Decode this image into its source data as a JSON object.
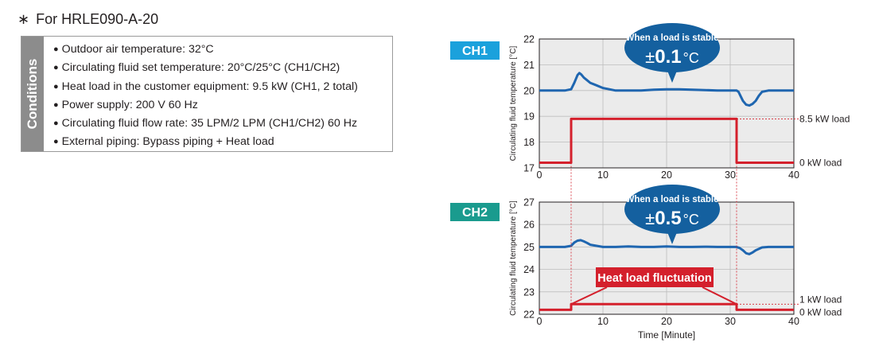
{
  "model": {
    "prefix": "∗",
    "label": "For HRLE090-A-20"
  },
  "conditions": {
    "tab_label": "Conditions",
    "items": [
      "Outdoor air temperature: 32°C",
      "Circulating fluid set temperature: 20°C/25°C (CH1/CH2)",
      "Heat load in the customer equipment: 9.5 kW (CH1, 2 total)",
      "Power supply: 200 V 60 Hz",
      "Circulating fluid flow rate: 35 LPM/2 LPM (CH1/CH2) 60 Hz",
      "External piping: Bypass piping + Heat load"
    ]
  },
  "colors": {
    "ch1_badge": "#1ba1dc",
    "ch2_badge": "#1a9b8e",
    "temperature_line": "#1f66b0",
    "load_line": "#d4202c",
    "callout": "#14609f",
    "plot_bg": "#ebebeb",
    "grid": "#bdbdbd"
  },
  "chart_data": [
    {
      "type": "line",
      "channel": "CH1",
      "ylabel": "Circulating fluid temperature [°C]",
      "xlim": [
        0,
        40
      ],
      "ylim": [
        17,
        22
      ],
      "xticks": [
        0,
        10,
        20,
        30,
        40
      ],
      "yticks": [
        17,
        18,
        19,
        20,
        21,
        22
      ],
      "grid": true,
      "series": [
        {
          "role": "temperature",
          "x": [
            0,
            2,
            4,
            5,
            5.5,
            6,
            6.3,
            6.6,
            7,
            7.5,
            8,
            9,
            10,
            11,
            12,
            14,
            16,
            18,
            20,
            22,
            24,
            26,
            28,
            30,
            31,
            31.3,
            31.6,
            32,
            32.5,
            33,
            33.5,
            34,
            34.5,
            35,
            36,
            38,
            40
          ],
          "y": [
            20.0,
            20.0,
            20.0,
            20.05,
            20.3,
            20.6,
            20.68,
            20.62,
            20.5,
            20.4,
            20.3,
            20.2,
            20.1,
            20.05,
            20.0,
            20.0,
            20.0,
            20.03,
            20.05,
            20.05,
            20.03,
            20.02,
            20.0,
            20.0,
            20.0,
            19.95,
            19.8,
            19.6,
            19.45,
            19.42,
            19.48,
            19.6,
            19.8,
            19.95,
            20.0,
            20.0,
            20.0
          ]
        },
        {
          "role": "heat-load",
          "x": [
            0,
            5,
            5,
            31,
            31,
            40
          ],
          "y": [
            17.2,
            17.2,
            18.9,
            18.9,
            17.2,
            17.2
          ]
        }
      ],
      "annotations": {
        "callout_line1": "When a load is stable",
        "callout_pm": "±",
        "callout_value": "0.1",
        "callout_unit": "°C",
        "load_high": "8.5 kW load",
        "load_low": "0 kW load"
      }
    },
    {
      "type": "line",
      "channel": "CH2",
      "xlabel": "Time [Minute]",
      "ylabel": "Circulating fluid temperature [°C]",
      "xlim": [
        0,
        40
      ],
      "ylim": [
        22,
        27
      ],
      "xticks": [
        0,
        10,
        20,
        30,
        40
      ],
      "yticks": [
        22,
        23,
        24,
        25,
        26,
        27
      ],
      "grid": true,
      "series": [
        {
          "role": "temperature",
          "x": [
            0,
            2,
            4,
            5,
            5.5,
            6,
            6.5,
            7,
            7.5,
            8,
            9,
            10,
            12,
            14,
            16,
            18,
            20,
            22,
            24,
            26,
            28,
            30,
            31,
            31.5,
            32,
            32.5,
            33,
            33.5,
            34,
            35,
            36,
            38,
            40
          ],
          "y": [
            25.0,
            25.0,
            25.0,
            25.05,
            25.2,
            25.28,
            25.3,
            25.25,
            25.18,
            25.1,
            25.05,
            25.0,
            25.0,
            25.02,
            25.0,
            25.0,
            25.02,
            25.0,
            25.0,
            25.01,
            25.0,
            25.0,
            25.0,
            24.95,
            24.85,
            24.72,
            24.68,
            24.75,
            24.85,
            24.98,
            25.0,
            25.0,
            25.0
          ]
        },
        {
          "role": "heat-load",
          "x": [
            0,
            5,
            5,
            31,
            31,
            40
          ],
          "y": [
            22.2,
            22.2,
            22.45,
            22.45,
            22.2,
            22.2
          ]
        }
      ],
      "annotations": {
        "callout_line1": "When a load is stable",
        "callout_pm": "±",
        "callout_value": "0.5",
        "callout_unit": "°C",
        "fluctuation_label": "Heat load fluctuation",
        "load_high": "1 kW load",
        "load_low": "0 kW load"
      }
    }
  ]
}
